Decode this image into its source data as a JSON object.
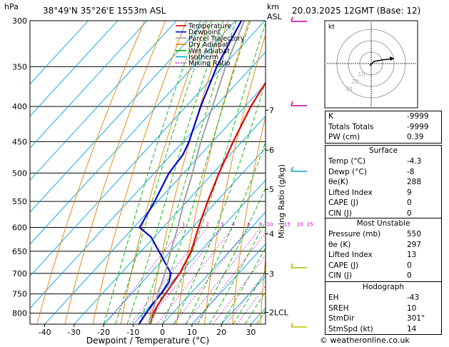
{
  "header": {
    "location": "38°49'N  35°26'E  1553m  ASL",
    "datetime": "20.03.2025  12GMT  (Base: 12)",
    "pressure_unit": "hPa",
    "height_unit_km": "km",
    "height_unit_asl": "ASL"
  },
  "chart_data": {
    "type": "line",
    "title": "",
    "xlabel": "Dewpoint / Temperature (°C)",
    "ylabel": "hPa",
    "right_label": "Mixing Ratio (g/kg)",
    "xlim": [
      -45,
      35
    ],
    "x_ticks": [
      -40,
      -30,
      -20,
      -10,
      0,
      10,
      20,
      30
    ],
    "pressure_levels": [
      300,
      350,
      400,
      450,
      500,
      550,
      600,
      650,
      700,
      750,
      800
    ],
    "km_levels": [
      {
        "label": "7",
        "p": 405
      },
      {
        "label": "6",
        "p": 463
      },
      {
        "label": "5",
        "p": 528
      },
      {
        "label": "4",
        "p": 613
      },
      {
        "label": "3",
        "p": 701
      },
      {
        "label": "2LCL",
        "p": 798
      }
    ],
    "mixing_ratio_labels": [
      "1",
      "2",
      "3",
      "4",
      "6",
      "8",
      "10",
      "15",
      "20",
      "25"
    ],
    "mixing_ratio_values": [
      1,
      2,
      3,
      4,
      6,
      8,
      10,
      15,
      20,
      25
    ],
    "legend": {
      "position": "top-left",
      "entries": [
        {
          "name": "Temperature",
          "color": "#e00000",
          "style": "solid"
        },
        {
          "name": "Dewpoint",
          "color": "#0000cc",
          "style": "solid"
        },
        {
          "name": "Parcel Trajectory",
          "color": "#a0a0a0",
          "style": "solid"
        },
        {
          "name": "Dry Adiabat",
          "color": "#e08000",
          "style": "solid"
        },
        {
          "name": "Wet Adiabat",
          "color": "#00b000",
          "style": "solid"
        },
        {
          "name": "Isotherm",
          "color": "#00a0e0",
          "style": "solid"
        },
        {
          "name": "Mixing Ratio",
          "color": "#c000c0",
          "style": "dotted"
        }
      ]
    },
    "series": [
      {
        "name": "Temperature",
        "points": [
          [
            830,
            -4.3
          ],
          [
            800,
            -6.5
          ],
          [
            780,
            -7.5
          ],
          [
            750,
            -8.5
          ],
          [
            700,
            -10
          ],
          [
            650,
            -13
          ],
          [
            600,
            -18
          ],
          [
            550,
            -23
          ],
          [
            500,
            -28
          ],
          [
            450,
            -33
          ],
          [
            400,
            -38
          ],
          [
            350,
            -42
          ],
          [
            300,
            -47
          ]
        ]
      },
      {
        "name": "Dewpoint",
        "points": [
          [
            830,
            -8
          ],
          [
            800,
            -9
          ],
          [
            780,
            -9.5
          ],
          [
            750,
            -10
          ],
          [
            720,
            -11
          ],
          [
            700,
            -13
          ],
          [
            650,
            -24
          ],
          [
            620,
            -31
          ],
          [
            600,
            -38
          ],
          [
            550,
            -41
          ],
          [
            500,
            -45
          ],
          [
            470,
            -46
          ],
          [
            450,
            -48
          ],
          [
            400,
            -55
          ],
          [
            350,
            -62
          ],
          [
            300,
            -68
          ]
        ]
      },
      {
        "name": "Parcel Trajectory",
        "points": [
          [
            830,
            -4.3
          ],
          [
            800,
            -7
          ],
          [
            750,
            -11
          ],
          [
            700,
            -15
          ],
          [
            650,
            -20
          ],
          [
            600,
            -25
          ],
          [
            550,
            -31
          ],
          [
            500,
            -37
          ],
          [
            450,
            -44
          ],
          [
            400,
            -51
          ],
          [
            350,
            -59
          ],
          [
            300,
            -67
          ]
        ]
      }
    ]
  },
  "hodograph": {
    "unit": "kt",
    "ring_labels": [
      "10",
      "20",
      "30"
    ]
  },
  "indices": [
    {
      "label": "K",
      "value": "-9999"
    },
    {
      "label": "Totals Totals",
      "value": "-9999"
    },
    {
      "label": "PW (cm)",
      "value": "0.39"
    }
  ],
  "surface": {
    "title": "Surface",
    "rows": [
      {
        "label": "Temp (°C)",
        "value": "-4.3"
      },
      {
        "label": "Dewp (°C)",
        "value": "-8"
      },
      {
        "label": "θe(K)",
        "value": "288"
      },
      {
        "label": "Lifted Index",
        "value": "9"
      },
      {
        "label": "CAPE (J)",
        "value": "0"
      },
      {
        "label": "CIN (J)",
        "value": "0"
      }
    ]
  },
  "most_unstable": {
    "title": "Most Unstable",
    "rows": [
      {
        "label": "Pressure (mb)",
        "value": "550"
      },
      {
        "label": "θe (K)",
        "value": "297"
      },
      {
        "label": "Lifted Index",
        "value": "13"
      },
      {
        "label": "CAPE (J)",
        "value": "0"
      },
      {
        "label": "CIN (J)",
        "value": "0"
      }
    ]
  },
  "hodograph_table": {
    "title": "Hodograph",
    "rows": [
      {
        "label": "EH",
        "value": "-43"
      },
      {
        "label": "SREH",
        "value": "10"
      },
      {
        "label": "StmDir",
        "value": "301°"
      },
      {
        "label": "StmSpd (kt)",
        "value": "14"
      }
    ]
  },
  "footer": {
    "copyright": "© weatheronline.co.uk"
  }
}
